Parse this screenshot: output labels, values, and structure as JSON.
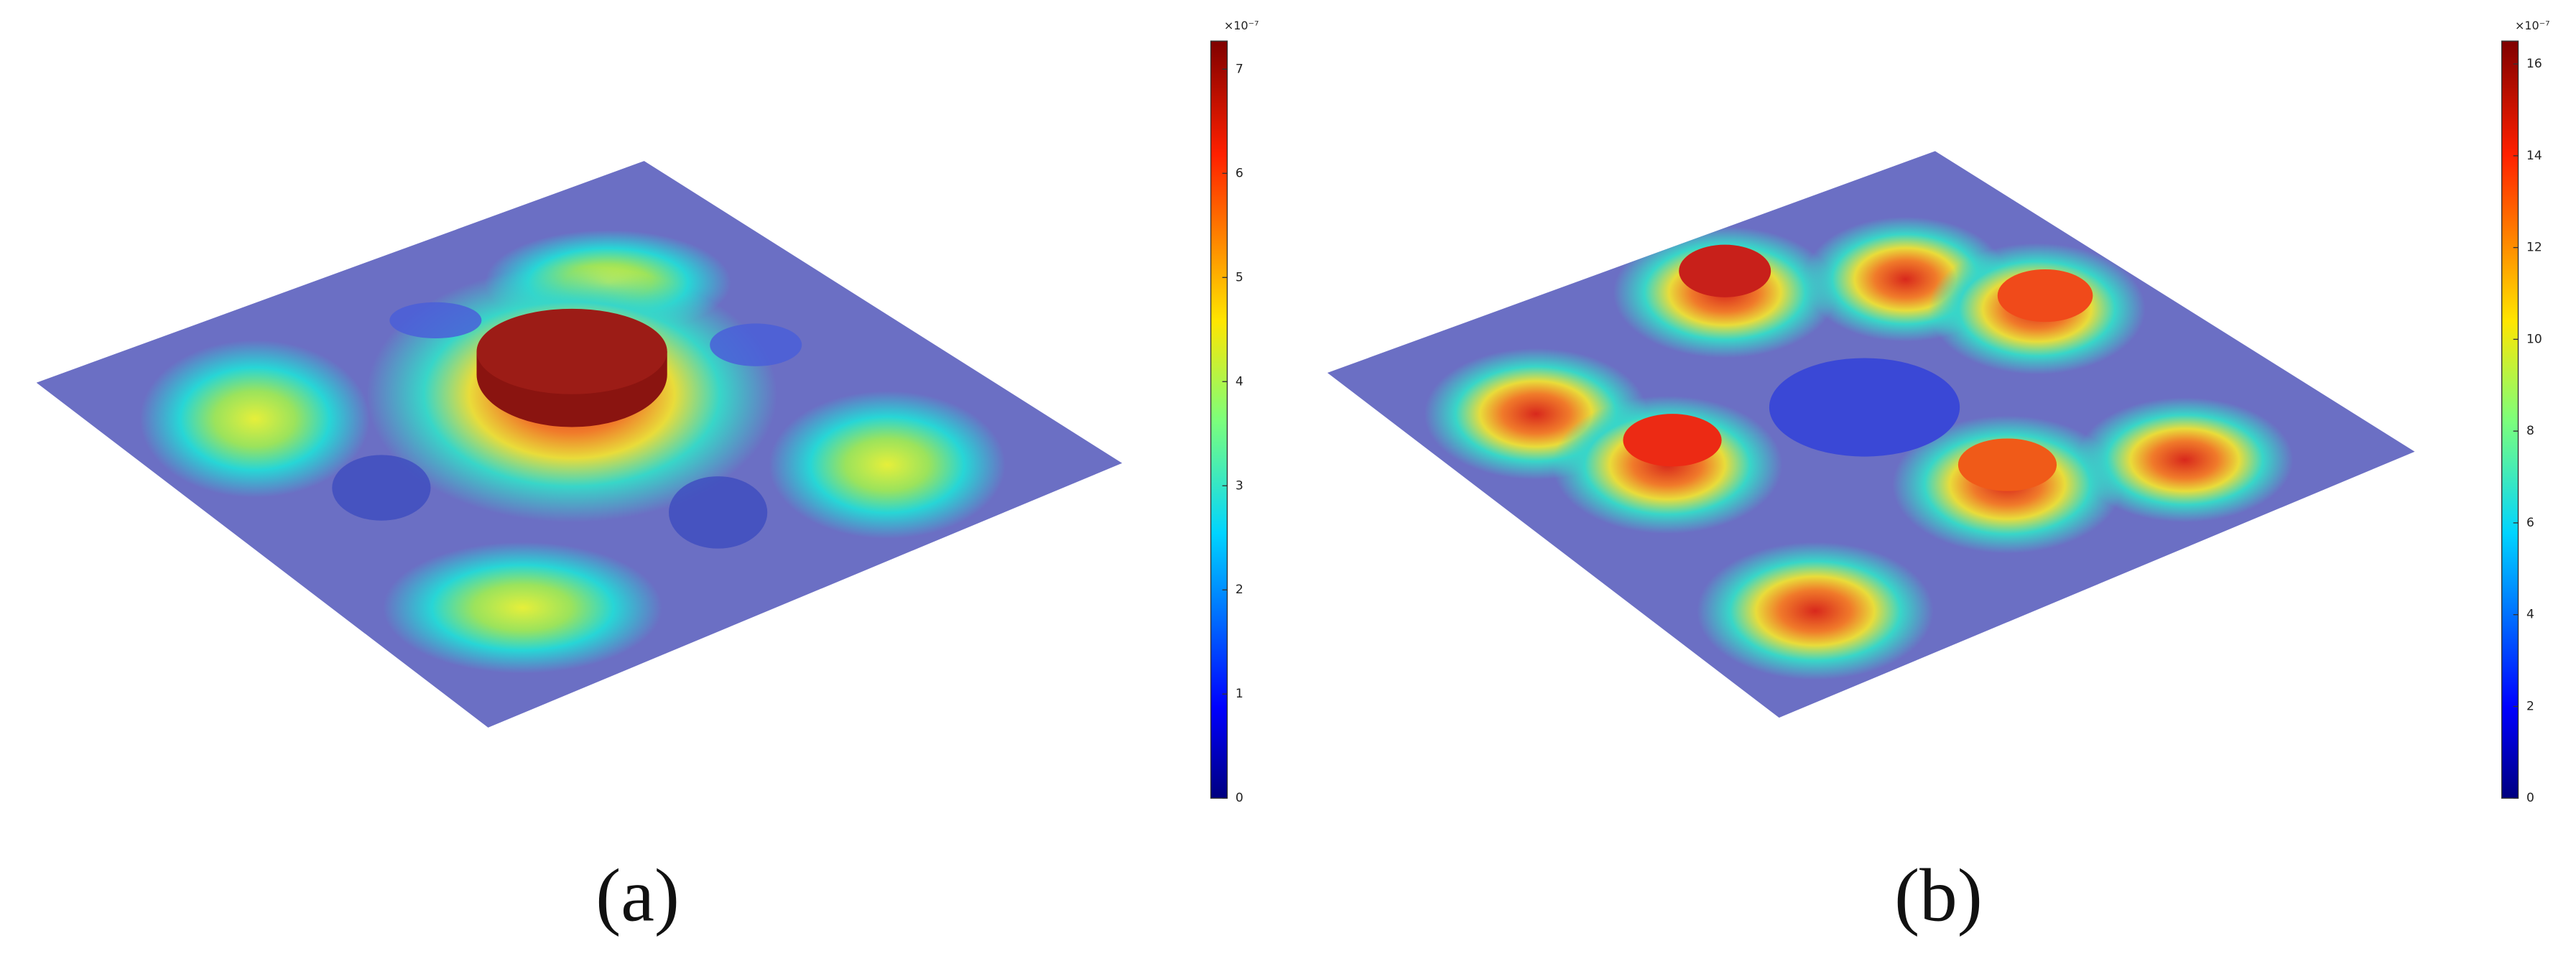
{
  "panels": [
    {
      "label": "(a)",
      "colorbar": {
        "multiplier": "×10⁻⁷",
        "range": [
          0,
          7.27
        ],
        "ticks": [
          0,
          1,
          2,
          3,
          4,
          5,
          6,
          7
        ]
      }
    },
    {
      "label": "(b)",
      "colorbar": {
        "multiplier": "×10⁻⁷",
        "range": [
          0,
          16.5
        ],
        "ticks": [
          0,
          2,
          4,
          6,
          8,
          10,
          12,
          14,
          16
        ]
      }
    }
  ]
}
